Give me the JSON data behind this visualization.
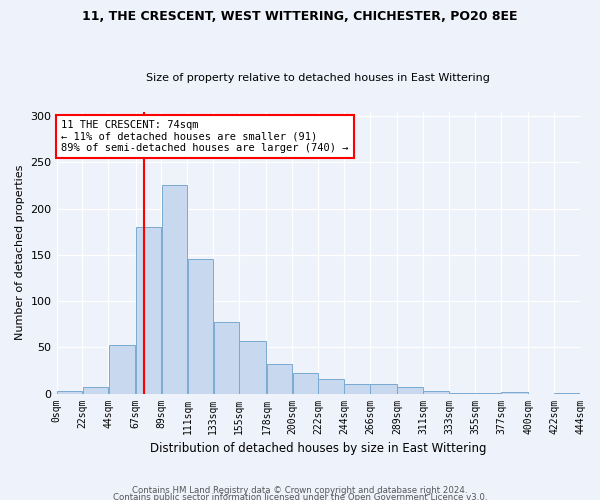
{
  "title1": "11, THE CRESCENT, WEST WITTERING, CHICHESTER, PO20 8EE",
  "title2": "Size of property relative to detached houses in East Wittering",
  "xlabel": "Distribution of detached houses by size in East Wittering",
  "ylabel": "Number of detached properties",
  "bar_color": "#c8d8ef",
  "bar_edge_color": "#7aaad0",
  "bin_edges": [
    0,
    22,
    44,
    67,
    89,
    111,
    133,
    155,
    178,
    200,
    222,
    244,
    266,
    289,
    311,
    333,
    355,
    377,
    400,
    422,
    444
  ],
  "bar_heights": [
    3,
    7,
    52,
    180,
    226,
    145,
    77,
    57,
    32,
    22,
    16,
    10,
    10,
    7,
    3,
    1,
    1,
    2,
    0,
    1
  ],
  "ylim": [
    0,
    305
  ],
  "yticks": [
    0,
    50,
    100,
    150,
    200,
    250,
    300
  ],
  "property_line_x": 74,
  "annotation_line1": "11 THE CRESCENT: 74sqm",
  "annotation_line2": "← 11% of detached houses are smaller (91)",
  "annotation_line3": "89% of semi-detached houses are larger (740) →",
  "footer1": "Contains HM Land Registry data © Crown copyright and database right 2024.",
  "footer2": "Contains public sector information licensed under the Open Government Licence v3.0.",
  "background_color": "#eef2fa"
}
